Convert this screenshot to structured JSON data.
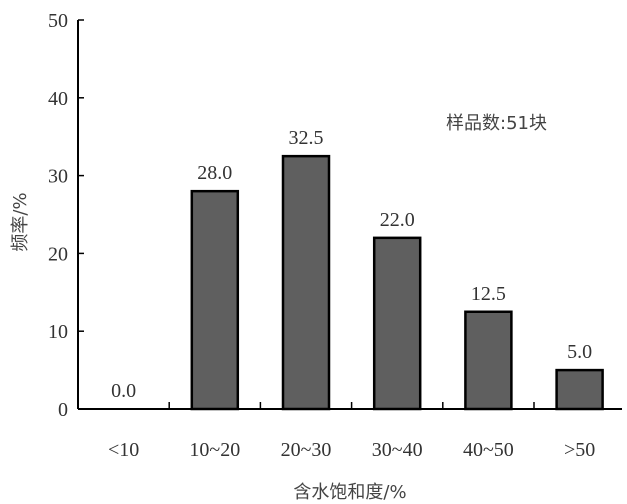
{
  "chart_data": {
    "type": "bar",
    "categories": [
      "<10",
      "10~20",
      "20~30",
      "30~40",
      "40~50",
      ">50"
    ],
    "values": [
      0.0,
      28.0,
      32.5,
      22.0,
      12.5,
      5.0
    ],
    "data_labels": [
      "0.0",
      "28.0",
      "32.5",
      "22.0",
      "12.5",
      "5.0"
    ],
    "xlabel": "含水饱和度/%",
    "ylabel": "频率/%",
    "ylim": [
      0,
      50
    ],
    "yticks": [
      "0",
      "10",
      "20",
      "30",
      "40",
      "50"
    ],
    "annotation": "样品数:51块",
    "grid": false,
    "bar_color": "#5f5f5f",
    "edge_color": "#000000"
  }
}
